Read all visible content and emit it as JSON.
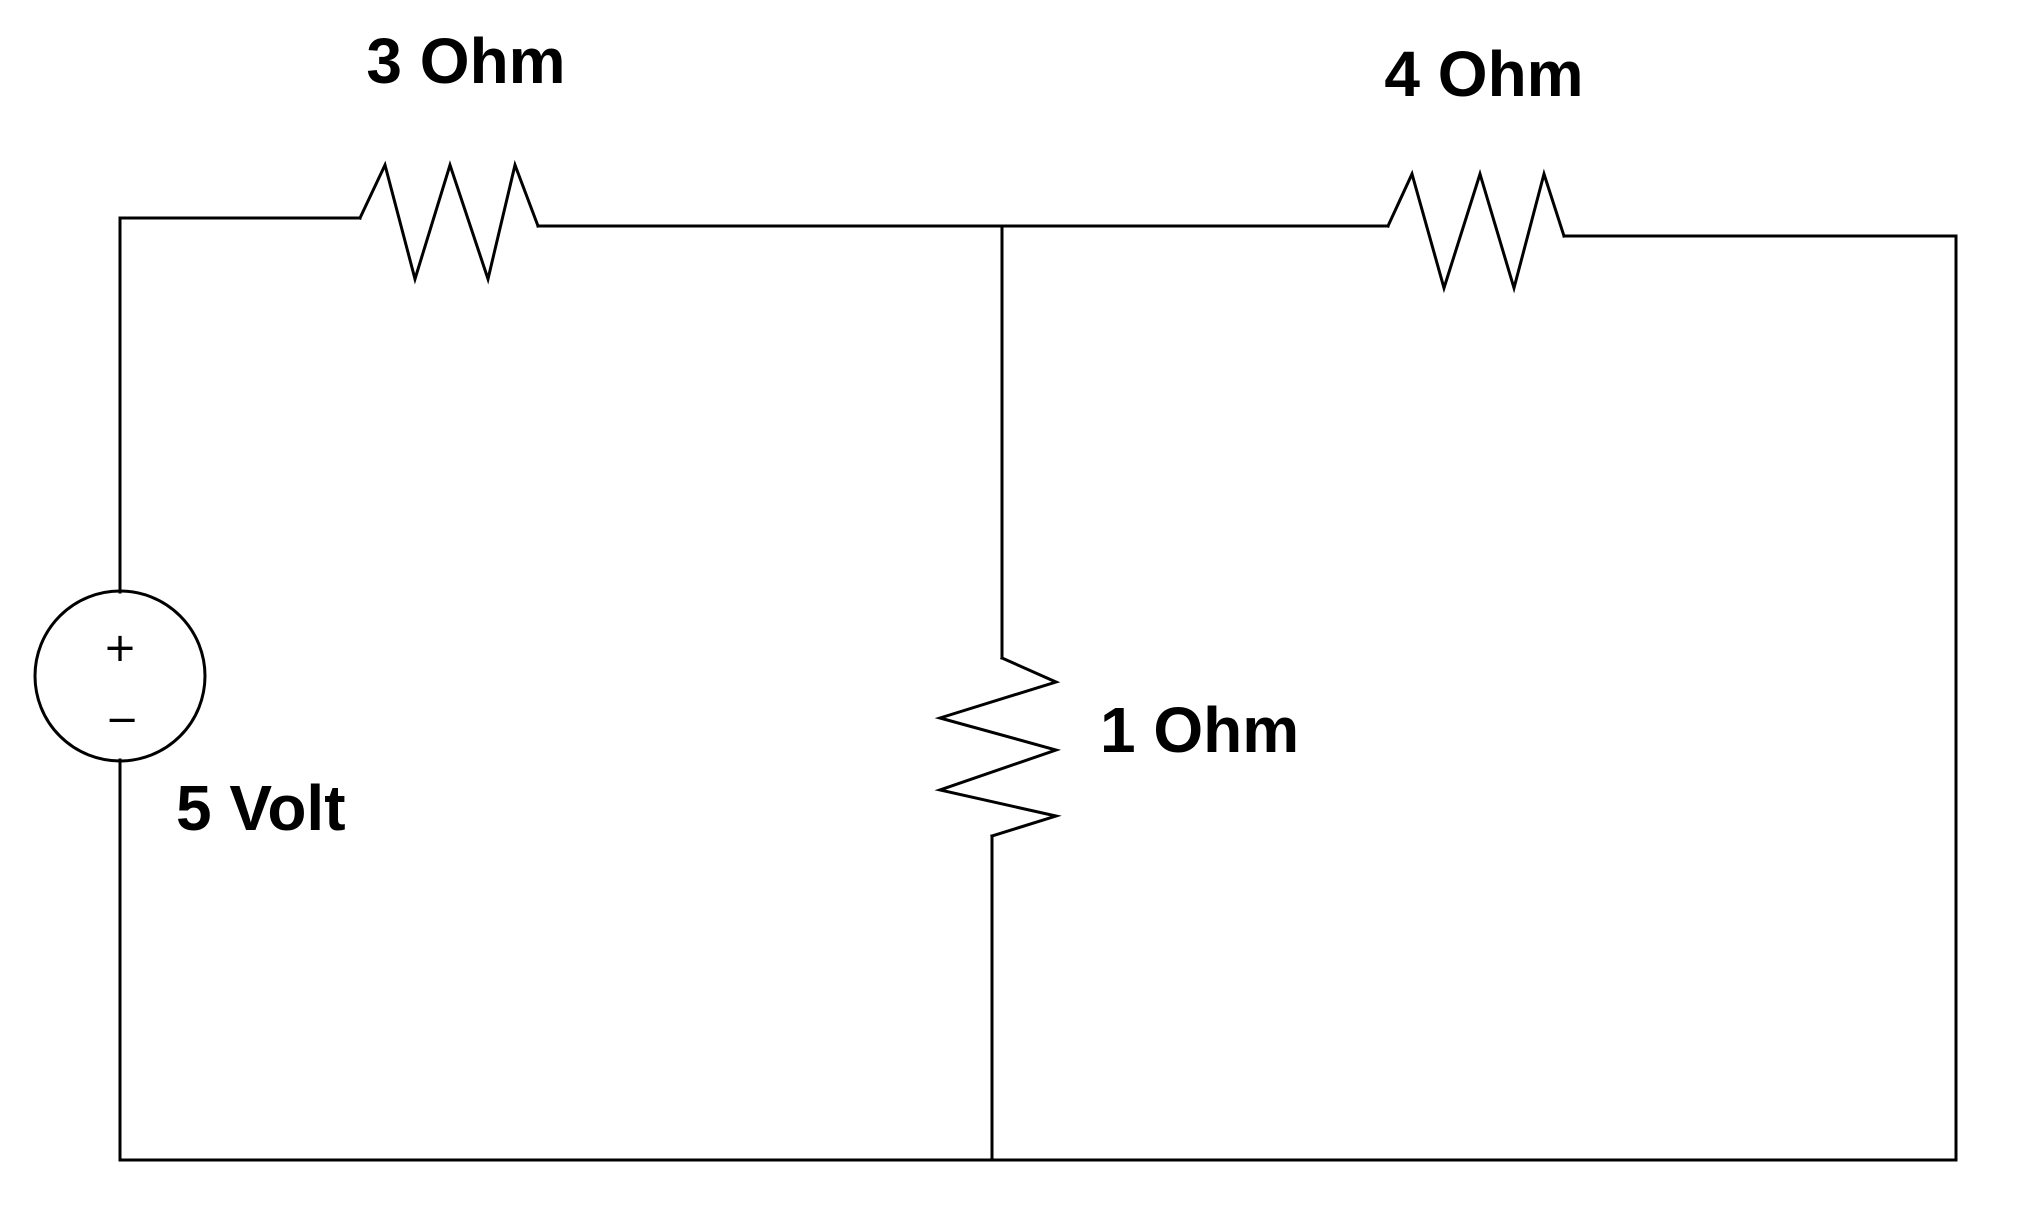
{
  "circuit": {
    "source": {
      "label": "5 Volt",
      "plus_sign": "+",
      "minus_sign": "−"
    },
    "resistors": {
      "r1": {
        "label": "3 Ohm"
      },
      "r2": {
        "label": "4 Ohm"
      },
      "r3": {
        "label": "1 Ohm"
      }
    }
  }
}
